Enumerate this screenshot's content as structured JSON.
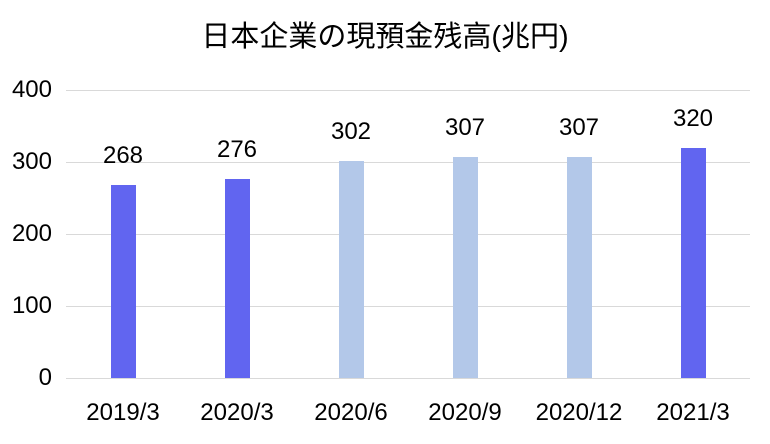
{
  "chart_data": {
    "type": "bar",
    "title": "日本企業の現預金残高(兆円)",
    "categories": [
      "2019/3",
      "2020/3",
      "2020/6",
      "2020/9",
      "2020/12",
      "2021/3"
    ],
    "values": [
      268,
      276,
      302,
      307,
      307,
      320
    ],
    "data_labels": [
      "268",
      "276",
      "302",
      "307",
      "307",
      "320"
    ],
    "xlabel": "",
    "ylabel": "",
    "ylim": [
      0,
      400
    ],
    "yticks": [
      0,
      100,
      200,
      300,
      400
    ],
    "grid": true,
    "legend": false,
    "bar_colors": [
      "#6165f0",
      "#6165f0",
      "#b3c8e9",
      "#b3c8e9",
      "#b3c8e9",
      "#6165f0"
    ],
    "colors": {
      "highlight_bar": "#6165f0",
      "muted_bar": "#b3c8e9",
      "gridline": "#d9d9d9",
      "text": "#000000",
      "background": "#ffffff"
    }
  }
}
